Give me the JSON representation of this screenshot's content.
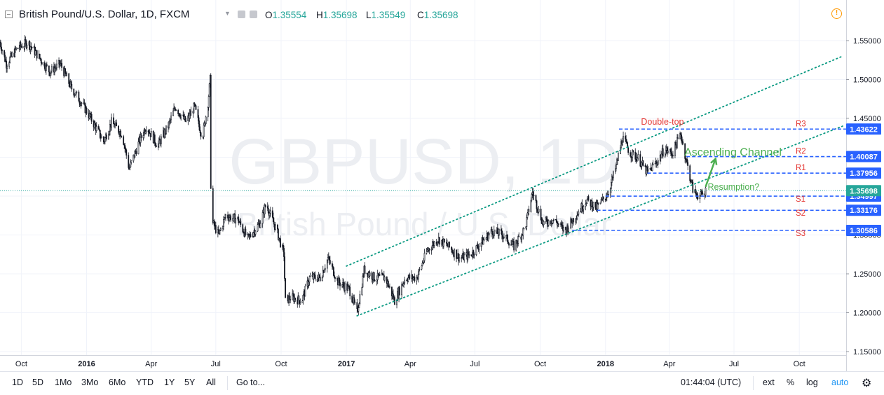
{
  "header": {
    "symbol_title": "British Pound/U.S. Dollar, 1D, FXCM",
    "ohlc": [
      {
        "key": "O",
        "value": "1.35554"
      },
      {
        "key": "H",
        "value": "1.35698"
      },
      {
        "key": "L",
        "value": "1.35549"
      },
      {
        "key": "C",
        "value": "1.35698"
      }
    ]
  },
  "watermark": {
    "line1": "GBPUSD, 1D",
    "line2": "British Pound / U.S. Dollar"
  },
  "chart_data": {
    "type": "candlestick",
    "ylim": [
      1.15,
      1.57
    ],
    "y_ticks": [
      "1.55000",
      "1.50000",
      "1.45000",
      "1.40000",
      "1.35000",
      "1.30000",
      "1.25000",
      "1.20000",
      "1.15000"
    ],
    "y_tick_values": [
      1.55,
      1.5,
      1.45,
      1.4,
      1.35,
      1.3,
      1.25,
      1.2,
      1.15
    ],
    "x_ticks": [
      {
        "label": "Oct",
        "date": "2015-10-01",
        "bold": false
      },
      {
        "label": "2016",
        "date": "2016-01-01",
        "bold": true
      },
      {
        "label": "Apr",
        "date": "2016-04-01",
        "bold": false
      },
      {
        "label": "Jul",
        "date": "2016-07-01",
        "bold": false
      },
      {
        "label": "Oct",
        "date": "2016-10-01",
        "bold": false
      },
      {
        "label": "2017",
        "date": "2017-01-01",
        "bold": true
      },
      {
        "label": "Apr",
        "date": "2017-04-01",
        "bold": false
      },
      {
        "label": "Jul",
        "date": "2017-07-01",
        "bold": false
      },
      {
        "label": "Oct",
        "date": "2017-10-01",
        "bold": false
      },
      {
        "label": "2018",
        "date": "2018-01-01",
        "bold": true
      },
      {
        "label": "Apr",
        "date": "2018-04-01",
        "bold": false
      },
      {
        "label": "Jul",
        "date": "2018-07-01",
        "bold": false
      },
      {
        "label": "Oct",
        "date": "2018-10-01",
        "bold": false
      }
    ],
    "price_path": [
      [
        "2015-09-01",
        1.548
      ],
      [
        "2015-09-10",
        1.52
      ],
      [
        "2015-09-25",
        1.54
      ],
      [
        "2015-10-10",
        1.548
      ],
      [
        "2015-10-25",
        1.53
      ],
      [
        "2015-11-10",
        1.51
      ],
      [
        "2015-11-25",
        1.52
      ],
      [
        "2015-12-10",
        1.49
      ],
      [
        "2015-12-25",
        1.47
      ],
      [
        "2016-01-10",
        1.445
      ],
      [
        "2016-01-25",
        1.42
      ],
      [
        "2016-02-05",
        1.445
      ],
      [
        "2016-02-20",
        1.43
      ],
      [
        "2016-03-01",
        1.385
      ],
      [
        "2016-03-15",
        1.42
      ],
      [
        "2016-03-25",
        1.44
      ],
      [
        "2016-04-10",
        1.415
      ],
      [
        "2016-04-25",
        1.44
      ],
      [
        "2016-05-05",
        1.465
      ],
      [
        "2016-05-20",
        1.445
      ],
      [
        "2016-06-01",
        1.465
      ],
      [
        "2016-06-12",
        1.425
      ],
      [
        "2016-06-20",
        1.47
      ],
      [
        "2016-06-23",
        1.5
      ],
      [
        "2016-06-24",
        1.365
      ],
      [
        "2016-06-27",
        1.315
      ],
      [
        "2016-07-05",
        1.3
      ],
      [
        "2016-07-15",
        1.325
      ],
      [
        "2016-08-01",
        1.32
      ],
      [
        "2016-08-15",
        1.295
      ],
      [
        "2016-09-01",
        1.315
      ],
      [
        "2016-09-10",
        1.34
      ],
      [
        "2016-09-25",
        1.305
      ],
      [
        "2016-10-05",
        1.275
      ],
      [
        "2016-10-07",
        1.215
      ],
      [
        "2016-10-15",
        1.22
      ],
      [
        "2016-10-30",
        1.215
      ],
      [
        "2016-11-10",
        1.245
      ],
      [
        "2016-11-25",
        1.245
      ],
      [
        "2016-12-06",
        1.27
      ],
      [
        "2016-12-20",
        1.24
      ],
      [
        "2017-01-05",
        1.23
      ],
      [
        "2017-01-16",
        1.2
      ],
      [
        "2017-01-26",
        1.255
      ],
      [
        "2017-02-10",
        1.245
      ],
      [
        "2017-02-25",
        1.245
      ],
      [
        "2017-03-10",
        1.215
      ],
      [
        "2017-03-25",
        1.245
      ],
      [
        "2017-04-10",
        1.245
      ],
      [
        "2017-04-25",
        1.28
      ],
      [
        "2017-05-10",
        1.295
      ],
      [
        "2017-05-25",
        1.285
      ],
      [
        "2017-06-10",
        1.27
      ],
      [
        "2017-06-25",
        1.275
      ],
      [
        "2017-07-10",
        1.29
      ],
      [
        "2017-07-25",
        1.305
      ],
      [
        "2017-08-10",
        1.3
      ],
      [
        "2017-08-25",
        1.285
      ],
      [
        "2017-09-10",
        1.31
      ],
      [
        "2017-09-20",
        1.355
      ],
      [
        "2017-10-05",
        1.315
      ],
      [
        "2017-10-20",
        1.32
      ],
      [
        "2017-11-05",
        1.305
      ],
      [
        "2017-11-20",
        1.325
      ],
      [
        "2017-12-05",
        1.345
      ],
      [
        "2017-12-20",
        1.335
      ],
      [
        "2018-01-05",
        1.355
      ],
      [
        "2018-01-15",
        1.385
      ],
      [
        "2018-01-25",
        1.425
      ],
      [
        "2018-02-05",
        1.405
      ],
      [
        "2018-02-15",
        1.4
      ],
      [
        "2018-03-01",
        1.38
      ],
      [
        "2018-03-15",
        1.395
      ],
      [
        "2018-03-25",
        1.41
      ],
      [
        "2018-04-05",
        1.405
      ],
      [
        "2018-04-17",
        1.43
      ],
      [
        "2018-04-25",
        1.395
      ],
      [
        "2018-05-05",
        1.355
      ],
      [
        "2018-05-15",
        1.35
      ],
      [
        "2018-05-22",
        1.357
      ]
    ],
    "horizontal_levels": [
      {
        "name": "R3",
        "value": 1.43622,
        "label": "1.43622",
        "start": "2018-01-20"
      },
      {
        "name": "R2",
        "value": 1.40087,
        "label": "1.40087",
        "start": "2018-04-25"
      },
      {
        "name": "R1",
        "value": 1.37956,
        "label": "1.37956",
        "start": "2018-03-01"
      },
      {
        "name": "S1",
        "value": 1.34997,
        "label": "1.34997",
        "start": "2018-01-01"
      },
      {
        "name": "S2",
        "value": 1.33176,
        "label": "1.33176",
        "start": "2017-12-20"
      },
      {
        "name": "S3",
        "value": 1.30586,
        "label": "1.30586",
        "start": "2017-11-15"
      }
    ],
    "current_price": {
      "value": 1.35698,
      "label": "1.35698"
    },
    "channel_upper": {
      "start": [
        "2017-01-01",
        1.26
      ],
      "end": [
        "2018-12-01",
        1.53
      ]
    },
    "channel_lower": {
      "start": [
        "2017-01-16",
        1.196
      ],
      "end": [
        "2018-12-01",
        1.44
      ]
    },
    "annotations": [
      {
        "text": "Double-top",
        "at": [
          "2018-02-20",
          1.442
        ],
        "color": "#e53935"
      },
      {
        "text": "Ascending Channel",
        "at": [
          "2018-04-22",
          1.402
        ],
        "color": "#4caf50"
      },
      {
        "text": "Resumption?",
        "at": [
          "2018-05-25",
          1.358
        ],
        "color": "#4caf50"
      }
    ],
    "arrow": {
      "from": [
        "2018-05-22",
        1.362
      ],
      "to": [
        "2018-06-05",
        1.398
      ],
      "color": "#4caf50"
    },
    "level_color": "#2962ff",
    "channel_color": "#089981",
    "up_color": "#26a69a",
    "down_color": "#ef5350"
  },
  "toolbar": {
    "ranges": [
      "1D",
      "5D",
      "1Mo",
      "3Mo",
      "6Mo",
      "YTD",
      "1Y",
      "5Y",
      "All"
    ],
    "goto": "Go to...",
    "clock": "01:44:04 (UTC)",
    "options": [
      "ext",
      "%",
      "log",
      "auto"
    ]
  }
}
